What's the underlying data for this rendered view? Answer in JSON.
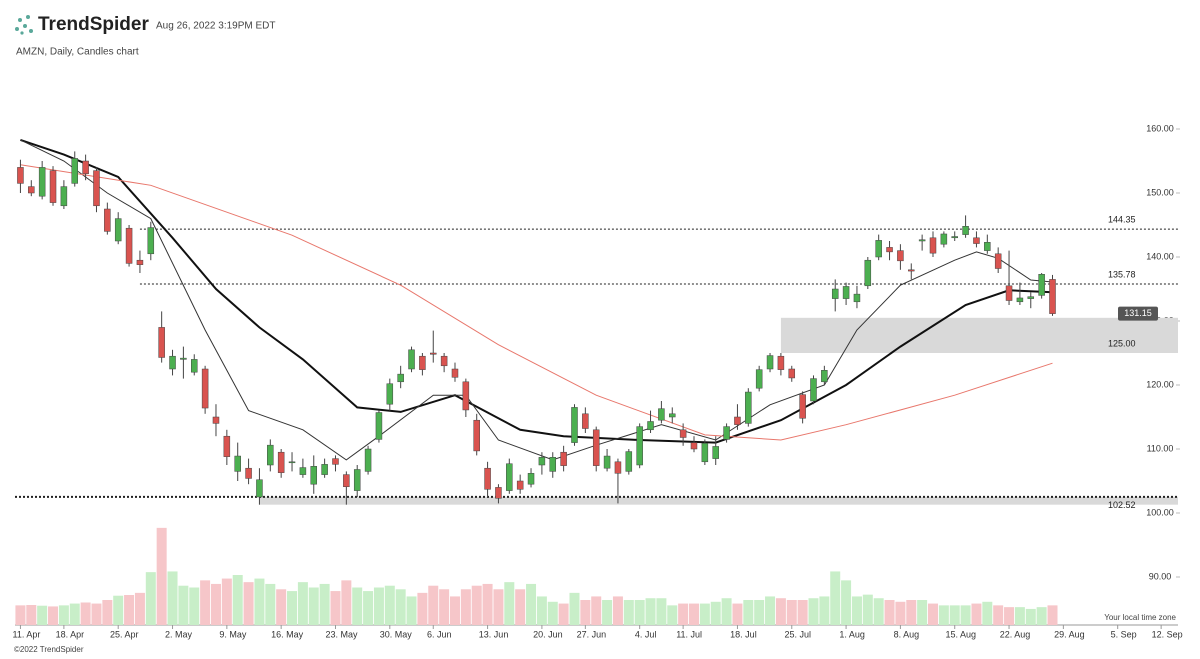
{
  "chart_data": {
    "type": "candlestick",
    "brand": "TrendSpider",
    "timestamp": "Aug 26, 2022 3:19PM EDT",
    "title": "AMZN, Daily, Candles chart",
    "timezone_note": "Your local time zone",
    "copyright": "©2022 TrendSpider",
    "up_color": "#4caf50",
    "down_color": "#d9534f",
    "volume_up_color": "#c8eec8",
    "volume_down_color": "#f6c6c9",
    "open": [
      154,
      151,
      149.5,
      153.5,
      148,
      151.5,
      155,
      153.5,
      147.5,
      142.5,
      144.5,
      139.5,
      140.5,
      129,
      122.5,
      124,
      122,
      122.5,
      115,
      112,
      106.5,
      107,
      102.5,
      107.5,
      109.5,
      108,
      106,
      104.5,
      106,
      108.5,
      106,
      103.5,
      106.5,
      111.5,
      117,
      120.5,
      122.5,
      124.5,
      125,
      124.5,
      122.5,
      120.5,
      114.5,
      107,
      104,
      103.5,
      105,
      104.5,
      107.5,
      106.5,
      109.5,
      111,
      115.5,
      113,
      107,
      108,
      106.5,
      107.5,
      113,
      114.5,
      115,
      113,
      111,
      108,
      108.5,
      111.5,
      115,
      114,
      119.5,
      122.5,
      124.5,
      122.5,
      118.5,
      117.5,
      120.5,
      133.5,
      133.5,
      133,
      135.5,
      140,
      141.5,
      141,
      138,
      142.5,
      143,
      142,
      143,
      143.5,
      143,
      141,
      140.5,
      135.5,
      133,
      133.5,
      134,
      136.5
    ],
    "high": [
      155.2,
      152,
      155,
      154.2,
      152,
      156.5,
      156,
      154,
      148.5,
      147,
      145,
      141,
      145.5,
      131.5,
      125.5,
      126,
      124.8,
      123,
      117,
      113,
      111,
      108.5,
      107,
      111.5,
      110,
      109.5,
      108.5,
      109,
      108.5,
      109,
      106.5,
      107.5,
      110.5,
      116,
      121,
      123,
      126,
      125,
      128.5,
      125,
      123.5,
      121,
      115.5,
      108,
      104.5,
      108.5,
      106,
      107,
      109.5,
      109.5,
      110.5,
      117,
      116.5,
      113.5,
      110,
      108.5,
      110,
      114,
      116,
      117.5,
      116.5,
      114,
      112,
      111.5,
      112,
      114,
      117,
      119.5,
      123,
      125,
      125,
      123,
      119,
      121.5,
      123,
      136.5,
      136,
      135.5,
      140,
      143.5,
      142.5,
      142,
      139,
      143.5,
      144,
      144,
      144,
      146.5,
      144,
      143.5,
      141.5,
      141,
      136,
      134.5,
      137.5,
      137.2
    ],
    "low": [
      150,
      149.5,
      149,
      148,
      147.5,
      151,
      152,
      147,
      143.5,
      142,
      138.5,
      137.5,
      139.5,
      123.5,
      121.5,
      121,
      121.5,
      115.5,
      112,
      107.5,
      105,
      104.5,
      101.3,
      106.5,
      105.5,
      106.5,
      105.5,
      103,
      105.5,
      106.5,
      101.3,
      102.5,
      106,
      111,
      116,
      119.5,
      122,
      121.5,
      123.5,
      122,
      120.5,
      115,
      109,
      102.5,
      101.5,
      103,
      103,
      104,
      106,
      105.5,
      106.5,
      110.5,
      112.5,
      106.5,
      106.5,
      101.5,
      106,
      107,
      112.5,
      114,
      114,
      110.5,
      109.5,
      107.5,
      107.5,
      111,
      113,
      113.5,
      119,
      122,
      121.5,
      120.5,
      114,
      117,
      120,
      131.5,
      132.5,
      132,
      135,
      139.5,
      139.5,
      138,
      136.5,
      141,
      140,
      141.5,
      142.5,
      143,
      141.5,
      140.5,
      137.5,
      132.5,
      132.5,
      132,
      133.5,
      130.8
    ],
    "close": [
      151.5,
      150,
      154,
      148.5,
      151,
      155.4,
      153,
      148,
      144,
      146,
      139,
      138.8,
      144.6,
      124.3,
      124.5,
      124.2,
      124,
      116.4,
      114,
      108.8,
      108.9,
      105.4,
      105.2,
      110.6,
      106.3,
      108,
      107.1,
      107.3,
      107.6,
      107.6,
      104.1,
      106.8,
      110,
      115.7,
      120.2,
      121.7,
      125.5,
      122.4,
      124.8,
      123,
      121.2,
      116.1,
      109.7,
      103.7,
      102.3,
      107.7,
      103.7,
      106.2,
      108.7,
      108.7,
      107.4,
      116.5,
      113.2,
      107.4,
      108.9,
      106.2,
      109.6,
      113.5,
      114.3,
      116.3,
      115.5,
      111.8,
      110,
      110.9,
      110.4,
      113.5,
      113.8,
      118.9,
      122.4,
      124.6,
      122.4,
      121.1,
      114.8,
      121,
      122.3,
      135,
      135.4,
      134.2,
      139.5,
      142.6,
      140.8,
      139.4,
      137.8,
      142.7,
      140.6,
      143.6,
      143.2,
      144.8,
      142.1,
      142.3,
      138.2,
      133.2,
      133.6,
      133.8,
      137.3,
      131.15
    ],
    "volume": [
      55,
      56,
      54,
      52,
      55,
      60,
      63,
      60,
      70,
      82,
      84,
      90,
      148,
      272,
      150,
      110,
      105,
      125,
      115,
      130,
      140,
      120,
      130,
      115,
      100,
      95,
      120,
      105,
      115,
      95,
      125,
      105,
      95,
      105,
      110,
      100,
      80,
      90,
      110,
      100,
      80,
      100,
      110,
      115,
      100,
      120,
      100,
      115,
      80,
      65,
      60,
      90,
      70,
      80,
      70,
      80,
      70,
      70,
      75,
      75,
      55,
      60,
      60,
      60,
      65,
      75,
      60,
      70,
      70,
      80,
      75,
      70,
      70,
      75,
      80,
      150,
      125,
      80,
      85,
      75,
      70,
      65,
      70,
      70,
      60,
      55,
      55,
      55,
      60,
      65,
      55,
      50,
      50,
      45,
      50,
      55
    ],
    "volume_lim": [
      0,
      280
    ],
    "lines": [
      {
        "color": "#111111",
        "width": 2,
        "x": [
          0,
          4,
          9,
          14,
          18,
          22,
          26,
          31,
          35,
          40,
          46,
          50,
          57,
          64,
          70,
          76,
          81,
          87,
          91,
          95
        ],
        "values": [
          158.3,
          156,
          152.5,
          143,
          135,
          129,
          124,
          116.5,
          115.8,
          118.4,
          113,
          112,
          111.4,
          111,
          114.5,
          120,
          126,
          132.5,
          134.8,
          134.5
        ]
      },
      {
        "color": "#333333",
        "width": 1,
        "x": [
          0,
          4,
          8,
          12,
          17,
          21,
          26,
          30,
          33,
          38,
          41,
          44,
          49,
          53,
          59,
          64,
          69,
          74,
          77,
          81,
          86,
          88,
          90,
          93,
          95
        ],
        "values": [
          158.3,
          155,
          150,
          146,
          128.6,
          116,
          113,
          108.3,
          112,
          118.4,
          118.4,
          111.4,
          108.3,
          110.6,
          113.8,
          111.4,
          116.9,
          120,
          128.6,
          135.6,
          139.5,
          140.8,
          139.8,
          136.4,
          136.1
        ]
      },
      {
        "color": "#e8776c",
        "width": 1,
        "x": [
          0,
          12,
          25,
          35,
          44,
          53,
          63,
          70,
          76,
          86,
          95
        ],
        "values": [
          154.4,
          151.2,
          143.4,
          135.6,
          126.3,
          118.4,
          112.2,
          111.4,
          113.8,
          118.4,
          123.4
        ]
      }
    ],
    "levels": [
      {
        "value": 144.35,
        "from": 11
      },
      {
        "value": 135.78,
        "from": 11
      },
      {
        "value": 102.52,
        "from": -0.5
      }
    ],
    "zones": [
      {
        "from": 70,
        "low": {
          "value": 125,
          "label": "125.00"
        },
        "high": 130.5
      },
      {
        "from": 22,
        "low": 101.3,
        "high": 102.52
      }
    ],
    "last_price": 131.15,
    "xlim": [
      -0.5,
      106
    ],
    "ylim": [
      82.5,
      165
    ],
    "yticks": [
      {
        "value": 160,
        "label": "160.00"
      },
      {
        "value": 150,
        "label": "150.00"
      },
      {
        "value": 140,
        "label": "140.00"
      },
      {
        "value": 130,
        "label": "130.00"
      },
      {
        "value": 120,
        "label": "120.00"
      },
      {
        "value": 110,
        "label": "110.00"
      },
      {
        "value": 100,
        "label": "100.00"
      },
      {
        "value": 90,
        "label": "90.00"
      }
    ],
    "xticks": [
      {
        "value": 0,
        "label": "11. Apr"
      },
      {
        "value": 4,
        "label": "18. Apr"
      },
      {
        "value": 9,
        "label": "25. Apr"
      },
      {
        "value": 14,
        "label": "2. May"
      },
      {
        "value": 19,
        "label": "9. May"
      },
      {
        "value": 24,
        "label": "16. May"
      },
      {
        "value": 29,
        "label": "23. May"
      },
      {
        "value": 34,
        "label": "30. May"
      },
      {
        "value": 38,
        "label": "6. Jun"
      },
      {
        "value": 43,
        "label": "13. Jun"
      },
      {
        "value": 48,
        "label": "20. Jun"
      },
      {
        "value": 52,
        "label": "27. Jun"
      },
      {
        "value": 57,
        "label": "4. Jul"
      },
      {
        "value": 61,
        "label": "11. Jul"
      },
      {
        "value": 66,
        "label": "18. Jul"
      },
      {
        "value": 71,
        "label": "25. Jul"
      },
      {
        "value": 76,
        "label": "1. Aug"
      },
      {
        "value": 81,
        "label": "8. Aug"
      },
      {
        "value": 86,
        "label": "15. Aug"
      },
      {
        "value": 91,
        "label": "22. Aug"
      },
      {
        "value": 96,
        "label": "29. Aug"
      },
      {
        "value": 101,
        "label": "5. Sep"
      },
      {
        "value": 105,
        "label": "12. Sep"
      }
    ]
  }
}
